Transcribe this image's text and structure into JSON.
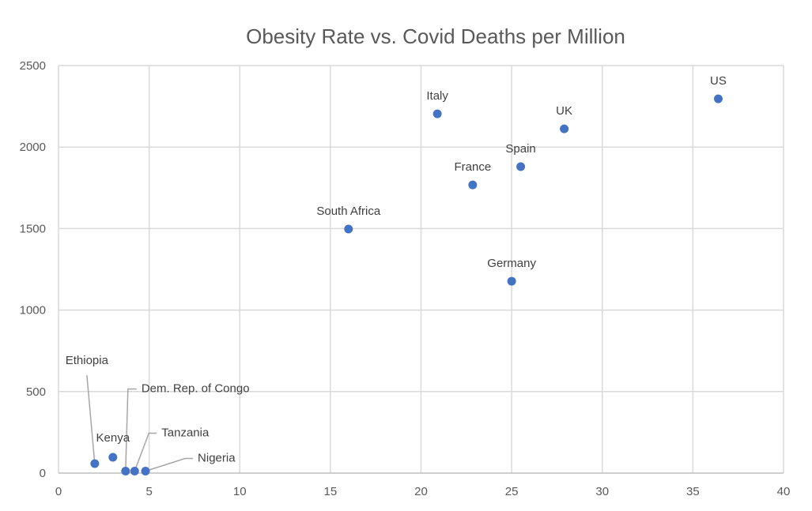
{
  "chart_data": {
    "type": "scatter",
    "title": "Obesity Rate vs. Covid Deaths per Million",
    "xlabel": "",
    "ylabel": "",
    "xlim": [
      0,
      40
    ],
    "ylim": [
      0,
      2500
    ],
    "xticks": [
      0,
      5,
      10,
      15,
      20,
      25,
      30,
      35,
      40
    ],
    "yticks": [
      0,
      500,
      1000,
      1500,
      2000,
      2500
    ],
    "grid": true,
    "legend": "none",
    "marker_color": "#4472C4",
    "points": [
      {
        "label": "Ethiopia",
        "x": 2.0,
        "y": 58
      },
      {
        "label": "Kenya",
        "x": 3.0,
        "y": 97
      },
      {
        "label": "Dem. Rep. of Congo",
        "x": 3.7,
        "y": 12
      },
      {
        "label": "Tanzania",
        "x": 4.2,
        "y": 12
      },
      {
        "label": "Nigeria",
        "x": 4.8,
        "y": 12
      },
      {
        "label": "South Africa",
        "x": 16.0,
        "y": 1497
      },
      {
        "label": "Italy",
        "x": 20.9,
        "y": 2204
      },
      {
        "label": "France",
        "x": 22.85,
        "y": 1768
      },
      {
        "label": "Germany",
        "x": 25.0,
        "y": 1177
      },
      {
        "label": "Spain",
        "x": 25.5,
        "y": 1880
      },
      {
        "label": "UK",
        "x": 27.9,
        "y": 2112
      },
      {
        "label": "US",
        "x": 36.4,
        "y": 2296
      }
    ]
  }
}
